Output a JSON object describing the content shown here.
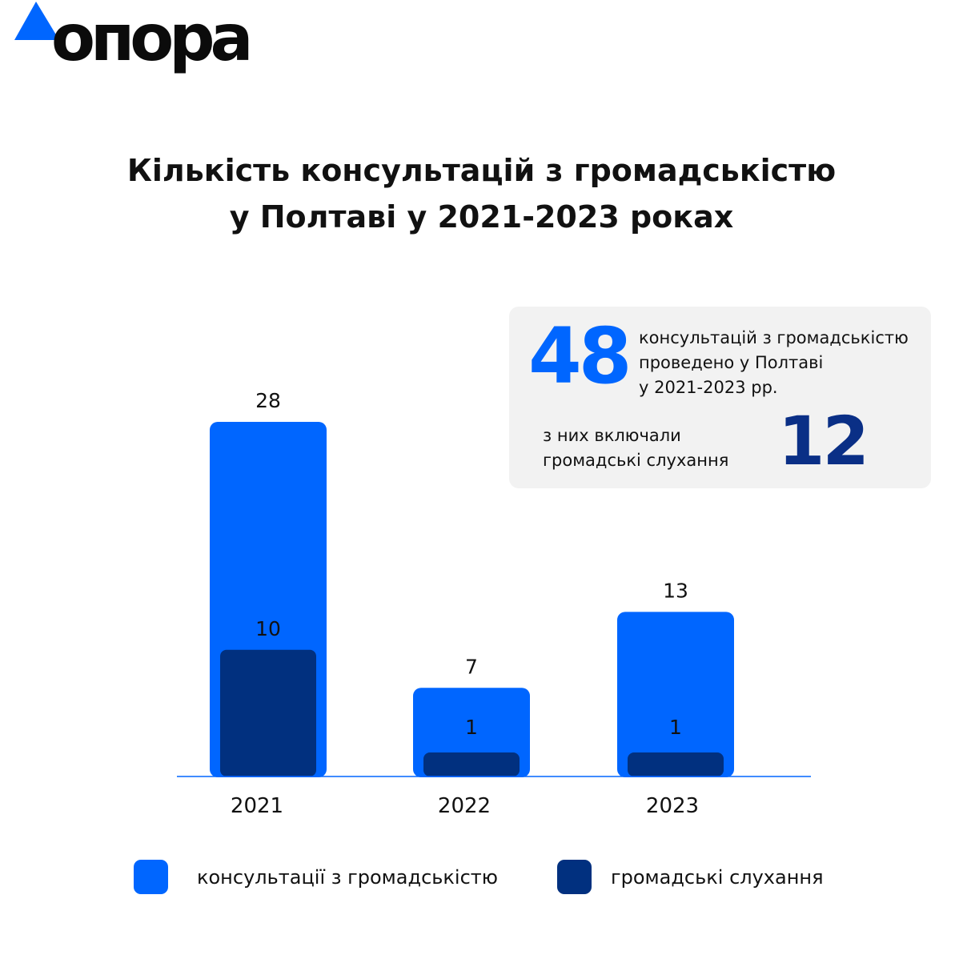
{
  "brand": {
    "name": "опора"
  },
  "title_lines": [
    "Кількість консультацій з громадськістю",
    "у Полтаві у 2021-2023 роках"
  ],
  "info_box": {
    "total_value": "48",
    "total_desc_lines": [
      "консультацій з громадськістю",
      "проведено у Полтаві",
      "у 2021-2023 рр."
    ],
    "sub_desc_lines": [
      "з них включали",
      "громадські слухання"
    ],
    "sub_value": "12"
  },
  "colors": {
    "consultations": "#0066ff",
    "hearings": "#01307f",
    "accent": "#0066ff"
  },
  "chart_data": {
    "type": "bar",
    "categories": [
      "2021",
      "2022",
      "2023"
    ],
    "series": [
      {
        "name": "консультації з громадськістю",
        "values": [
          28,
          7,
          13
        ],
        "color": "#0066ff"
      },
      {
        "name": "громадські слухання",
        "values": [
          10,
          1,
          1
        ],
        "color": "#01307f"
      }
    ],
    "title": "Кількість консультацій з громадськістю у Полтаві у 2021-2023 роках",
    "xlabel": "",
    "ylabel": "",
    "ylim": [
      0,
      28
    ],
    "grid": false,
    "legend_position": "bottom",
    "overlap": "nested"
  },
  "legend": [
    {
      "label": "консультації з громадськістю",
      "color": "#0066ff"
    },
    {
      "label": "громадські слухання",
      "color": "#01307f"
    }
  ]
}
